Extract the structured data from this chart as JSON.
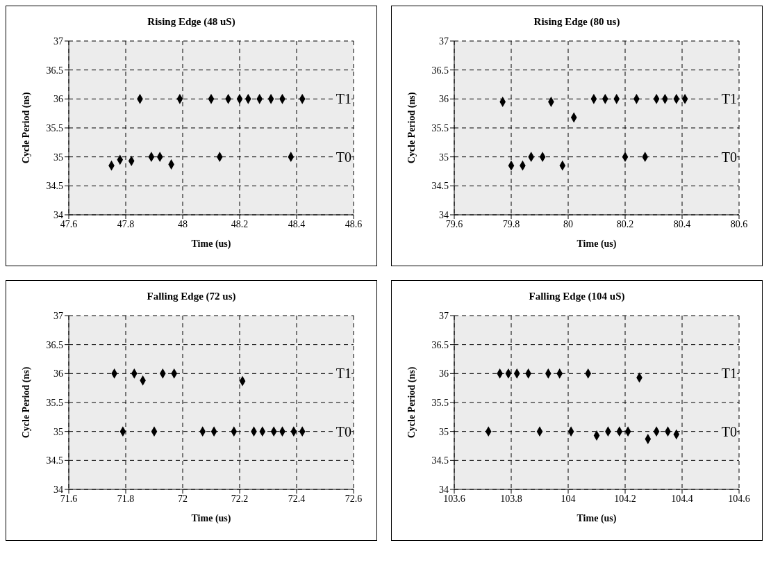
{
  "chart_data": [
    {
      "type": "scatter",
      "title": "Rising Edge (48 uS)",
      "xlabel": "Time (us)",
      "ylabel": "Cycle Period (ns)",
      "xlim": [
        47.6,
        48.6
      ],
      "xticks": [
        47.6,
        47.8,
        48,
        48.2,
        48.4,
        48.6
      ],
      "ylim": [
        34,
        37
      ],
      "yticks": [
        34,
        34.5,
        35,
        35.5,
        36,
        36.5,
        37
      ],
      "grid": true,
      "marker": "diamond",
      "legend": false,
      "annotations": [
        "T1",
        "T0"
      ],
      "series": [
        {
          "color": "#000000",
          "x": [
            47.75,
            47.78,
            47.82,
            47.85,
            47.89,
            47.92,
            47.96,
            47.99,
            48.1,
            48.13,
            48.16,
            48.2,
            48.23,
            48.27,
            48.31,
            48.35,
            48.38,
            48.42
          ],
          "values": [
            34.85,
            34.95,
            34.93,
            36,
            35,
            35,
            34.87,
            36,
            36,
            35,
            36,
            36,
            36,
            36,
            36,
            36,
            35,
            36
          ]
        }
      ]
    },
    {
      "type": "scatter",
      "title": "Rising Edge (80 us)",
      "xlabel": "Time (us)",
      "ylabel": "Cycle Period (ns)",
      "xlim": [
        79.6,
        80.6
      ],
      "xticks": [
        79.6,
        79.8,
        80,
        80.2,
        80.4,
        80.6
      ],
      "ylim": [
        34,
        37
      ],
      "yticks": [
        34,
        34.5,
        35,
        35.5,
        36,
        36.5,
        37
      ],
      "grid": true,
      "marker": "diamond",
      "legend": false,
      "annotations": [
        "T1",
        "T0"
      ],
      "series": [
        {
          "color": "#000000",
          "x": [
            79.77,
            79.8,
            79.84,
            79.87,
            79.91,
            79.94,
            79.98,
            80.02,
            80.09,
            80.13,
            80.17,
            80.2,
            80.24,
            80.27,
            80.31,
            80.34,
            80.38,
            80.41
          ],
          "values": [
            35.95,
            34.85,
            34.85,
            35,
            35,
            35.95,
            34.85,
            35.68,
            36,
            36,
            36,
            35,
            36,
            35,
            36,
            36,
            36,
            36
          ]
        }
      ]
    },
    {
      "type": "scatter",
      "title": "Falling Edge (72 us)",
      "xlabel": "Time (us)",
      "ylabel": "Cycle Period (ns)",
      "xlim": [
        71.6,
        72.6
      ],
      "xticks": [
        71.6,
        71.8,
        72,
        72.2,
        72.4,
        72.6
      ],
      "ylim": [
        34,
        37
      ],
      "yticks": [
        34,
        34.5,
        35,
        35.5,
        36,
        36.5,
        37
      ],
      "grid": true,
      "marker": "diamond",
      "legend": false,
      "annotations": [
        "T1",
        "T0"
      ],
      "series": [
        {
          "color": "#000000",
          "x": [
            71.76,
            71.79,
            71.83,
            71.86,
            71.9,
            71.93,
            71.97,
            72.07,
            72.11,
            72.18,
            72.21,
            72.25,
            72.28,
            72.32,
            72.35,
            72.39,
            72.42
          ],
          "values": [
            36,
            35,
            36,
            35.88,
            35,
            36,
            36,
            35,
            35,
            35,
            35.87,
            35,
            35,
            35,
            35,
            35,
            35
          ]
        }
      ]
    },
    {
      "type": "scatter",
      "title": "Falling Edge (104 uS)",
      "xlabel": "Time (us)",
      "ylabel": "Cycle Period (ns)",
      "xlim": [
        103.6,
        104.6
      ],
      "xticks": [
        103.6,
        103.8,
        104,
        104.2,
        104.4,
        104.6
      ],
      "ylim": [
        34,
        37
      ],
      "yticks": [
        34,
        34.5,
        35,
        35.5,
        36,
        36.5,
        37
      ],
      "grid": true,
      "marker": "diamond",
      "legend": false,
      "annotations": [
        "T1",
        "T0"
      ],
      "series": [
        {
          "color": "#000000",
          "x": [
            103.72,
            103.76,
            103.79,
            103.82,
            103.86,
            103.9,
            103.93,
            103.97,
            104.01,
            104.07,
            104.1,
            104.14,
            104.18,
            104.21,
            104.25,
            104.28,
            104.31,
            104.35,
            104.38
          ],
          "values": [
            35,
            36,
            36,
            36,
            36,
            35,
            36,
            36,
            35,
            36,
            34.93,
            35,
            35,
            35,
            35.93,
            34.87,
            35,
            35,
            34.95
          ]
        }
      ]
    }
  ]
}
